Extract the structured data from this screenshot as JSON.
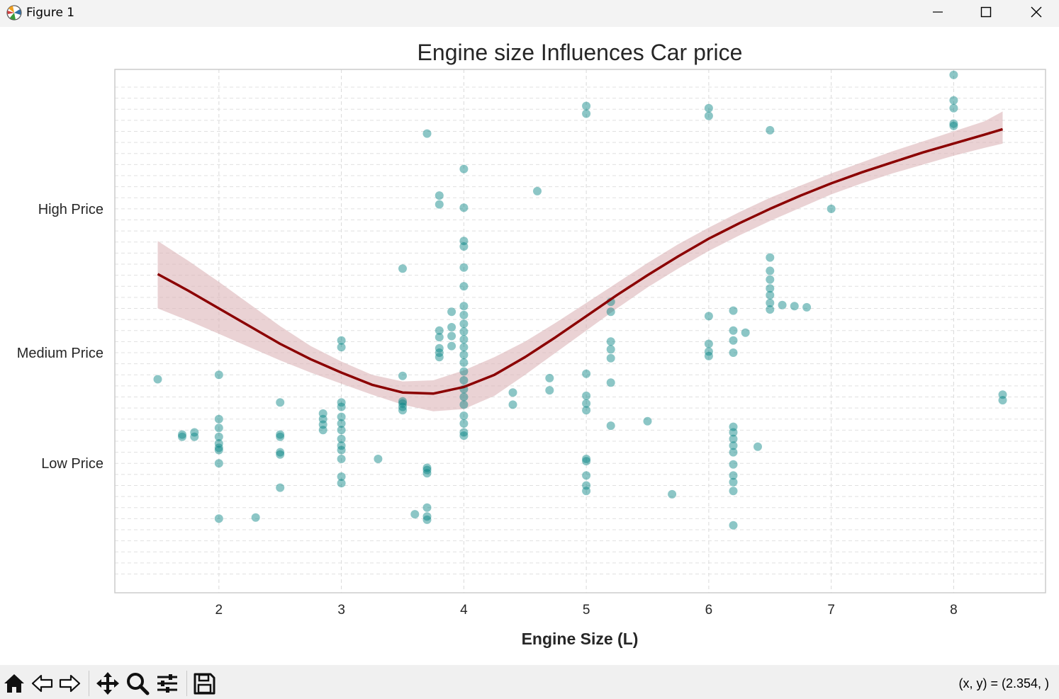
{
  "window": {
    "title": "Figure 1"
  },
  "toolbar": {
    "buttons": [
      "home-icon",
      "back-icon",
      "forward-icon",
      "pan-icon",
      "zoom-icon",
      "configure-subplots-icon",
      "save-icon"
    ],
    "coords": "(x, y) = (2.354, )"
  },
  "colors": {
    "points": "#008080",
    "trend": "#8b0000",
    "band": "#dcb4b8"
  },
  "chart_data": {
    "type": "scatter",
    "title": "Engine size Influences Car price",
    "xlabel": "Engine Size (L)",
    "ylabel": "",
    "xlim": [
      1.15,
      8.75
    ],
    "ylim": [
      -0.67,
      4.06
    ],
    "xticks": [
      2,
      3,
      4,
      5,
      6,
      7,
      8
    ],
    "ytick_values": [
      0.5,
      1.5,
      2.8
    ],
    "ytick_labels": [
      "Low Price",
      "Medium Price",
      "High Price"
    ],
    "grid": true,
    "points": [
      [
        1.5,
        1.26
      ],
      [
        1.7,
        0.74
      ],
      [
        1.7,
        0.76
      ],
      [
        1.8,
        0.74
      ],
      [
        1.8,
        0.78
      ],
      [
        2.0,
        1.3
      ],
      [
        2.0,
        0.9
      ],
      [
        2.0,
        0.82
      ],
      [
        2.0,
        0.74
      ],
      [
        2.0,
        0.68
      ],
      [
        2.0,
        0.64
      ],
      [
        2.0,
        0.62
      ],
      [
        2.0,
        0.5
      ],
      [
        2.0,
        0.0
      ],
      [
        2.3,
        0.01
      ],
      [
        2.5,
        1.05
      ],
      [
        2.5,
        0.76
      ],
      [
        2.5,
        0.74
      ],
      [
        2.5,
        0.6
      ],
      [
        2.5,
        0.58
      ],
      [
        2.5,
        0.28
      ],
      [
        2.85,
        0.95
      ],
      [
        2.85,
        0.9
      ],
      [
        2.85,
        0.85
      ],
      [
        2.85,
        0.8
      ],
      [
        3.0,
        1.61
      ],
      [
        3.0,
        1.55
      ],
      [
        3.0,
        1.05
      ],
      [
        3.0,
        1.01
      ],
      [
        3.0,
        0.92
      ],
      [
        3.0,
        0.86
      ],
      [
        3.0,
        0.8
      ],
      [
        3.0,
        0.72
      ],
      [
        3.0,
        0.66
      ],
      [
        3.0,
        0.62
      ],
      [
        3.0,
        0.54
      ],
      [
        3.0,
        0.38
      ],
      [
        3.0,
        0.32
      ],
      [
        3.3,
        0.54
      ],
      [
        3.5,
        2.26
      ],
      [
        3.5,
        1.29
      ],
      [
        3.5,
        1.06
      ],
      [
        3.5,
        1.04
      ],
      [
        3.5,
        1.01
      ],
      [
        3.5,
        0.98
      ],
      [
        3.6,
        0.04
      ],
      [
        3.7,
        3.48
      ],
      [
        3.7,
        0.46
      ],
      [
        3.7,
        0.44
      ],
      [
        3.7,
        0.41
      ],
      [
        3.7,
        0.1
      ],
      [
        3.7,
        0.02
      ],
      [
        3.7,
        -0.01
      ],
      [
        3.8,
        2.92
      ],
      [
        3.8,
        2.84
      ],
      [
        3.8,
        1.7
      ],
      [
        3.8,
        1.64
      ],
      [
        3.8,
        1.54
      ],
      [
        3.8,
        1.5
      ],
      [
        3.8,
        1.46
      ],
      [
        3.9,
        1.87
      ],
      [
        3.9,
        1.73
      ],
      [
        3.9,
        1.65
      ],
      [
        3.9,
        1.56
      ],
      [
        4.0,
        3.16
      ],
      [
        4.0,
        2.81
      ],
      [
        4.0,
        2.51
      ],
      [
        4.0,
        2.46
      ],
      [
        4.0,
        2.27
      ],
      [
        4.0,
        2.1
      ],
      [
        4.0,
        1.92
      ],
      [
        4.0,
        1.84
      ],
      [
        4.0,
        1.76
      ],
      [
        4.0,
        1.69
      ],
      [
        4.0,
        1.62
      ],
      [
        4.0,
        1.55
      ],
      [
        4.0,
        1.48
      ],
      [
        4.0,
        1.41
      ],
      [
        4.0,
        1.33
      ],
      [
        4.0,
        1.25
      ],
      [
        4.0,
        1.17
      ],
      [
        4.0,
        1.1
      ],
      [
        4.0,
        1.03
      ],
      [
        4.0,
        0.93
      ],
      [
        4.0,
        0.86
      ],
      [
        4.0,
        0.78
      ],
      [
        4.0,
        0.75
      ],
      [
        4.4,
        1.14
      ],
      [
        4.4,
        1.03
      ],
      [
        4.6,
        2.96
      ],
      [
        4.7,
        1.27
      ],
      [
        4.7,
        1.16
      ],
      [
        5.0,
        3.73
      ],
      [
        5.0,
        3.66
      ],
      [
        5.0,
        1.31
      ],
      [
        5.0,
        1.11
      ],
      [
        5.0,
        1.04
      ],
      [
        5.0,
        0.98
      ],
      [
        5.0,
        0.54
      ],
      [
        5.0,
        0.52
      ],
      [
        5.0,
        0.39
      ],
      [
        5.0,
        0.3
      ],
      [
        5.0,
        0.25
      ],
      [
        5.2,
        1.96
      ],
      [
        5.2,
        1.87
      ],
      [
        5.2,
        1.6
      ],
      [
        5.2,
        1.53
      ],
      [
        5.2,
        1.45
      ],
      [
        5.2,
        1.23
      ],
      [
        5.2,
        0.84
      ],
      [
        5.5,
        0.88
      ],
      [
        5.7,
        0.22
      ],
      [
        6.0,
        3.71
      ],
      [
        6.0,
        3.64
      ],
      [
        6.0,
        1.83
      ],
      [
        6.0,
        1.58
      ],
      [
        6.0,
        1.51
      ],
      [
        6.0,
        1.47
      ],
      [
        6.2,
        1.88
      ],
      [
        6.2,
        1.7
      ],
      [
        6.2,
        1.61
      ],
      [
        6.2,
        1.5
      ],
      [
        6.2,
        0.83
      ],
      [
        6.2,
        0.78
      ],
      [
        6.2,
        0.72
      ],
      [
        6.2,
        0.66
      ],
      [
        6.2,
        0.6
      ],
      [
        6.2,
        0.49
      ],
      [
        6.2,
        0.39
      ],
      [
        6.2,
        0.33
      ],
      [
        6.2,
        0.25
      ],
      [
        6.2,
        -0.06
      ],
      [
        6.3,
        1.68
      ],
      [
        6.4,
        0.65
      ],
      [
        6.5,
        3.51
      ],
      [
        6.5,
        2.36
      ],
      [
        6.5,
        2.24
      ],
      [
        6.5,
        2.16
      ],
      [
        6.5,
        2.08
      ],
      [
        6.5,
        2.02
      ],
      [
        6.5,
        1.95
      ],
      [
        6.5,
        1.89
      ],
      [
        6.6,
        1.93
      ],
      [
        6.7,
        1.92
      ],
      [
        6.8,
        1.91
      ],
      [
        7.0,
        2.8
      ],
      [
        8.0,
        4.01
      ],
      [
        8.0,
        3.78
      ],
      [
        8.0,
        3.71
      ],
      [
        8.0,
        3.57
      ],
      [
        8.0,
        3.55
      ],
      [
        8.4,
        1.12
      ],
      [
        8.4,
        1.07
      ]
    ],
    "trend_line": {
      "x": [
        1.5,
        1.75,
        2.0,
        2.25,
        2.5,
        2.75,
        3.0,
        3.25,
        3.5,
        3.75,
        4.0,
        4.25,
        4.5,
        4.75,
        5.0,
        5.25,
        5.5,
        5.75,
        6.0,
        6.25,
        6.5,
        6.75,
        7.0,
        7.25,
        7.5,
        7.75,
        8.0,
        8.25,
        8.4
      ],
      "y": [
        2.21,
        2.06,
        1.9,
        1.74,
        1.58,
        1.44,
        1.32,
        1.21,
        1.14,
        1.13,
        1.19,
        1.3,
        1.46,
        1.64,
        1.83,
        2.02,
        2.2,
        2.37,
        2.53,
        2.67,
        2.8,
        2.92,
        3.03,
        3.13,
        3.22,
        3.31,
        3.39,
        3.47,
        3.52
      ],
      "ci_upper": [
        2.51,
        2.33,
        2.14,
        1.94,
        1.74,
        1.56,
        1.42,
        1.3,
        1.24,
        1.25,
        1.34,
        1.46,
        1.6,
        1.77,
        1.95,
        2.13,
        2.31,
        2.48,
        2.63,
        2.77,
        2.9,
        3.01,
        3.12,
        3.22,
        3.32,
        3.41,
        3.5,
        3.59,
        3.68
      ],
      "ci_lower": [
        1.9,
        1.79,
        1.67,
        1.55,
        1.43,
        1.32,
        1.22,
        1.12,
        1.03,
        0.97,
        0.99,
        1.11,
        1.3,
        1.5,
        1.7,
        1.9,
        2.09,
        2.26,
        2.42,
        2.56,
        2.69,
        2.81,
        2.93,
        3.03,
        3.12,
        3.2,
        3.28,
        3.35,
        3.39
      ]
    }
  }
}
